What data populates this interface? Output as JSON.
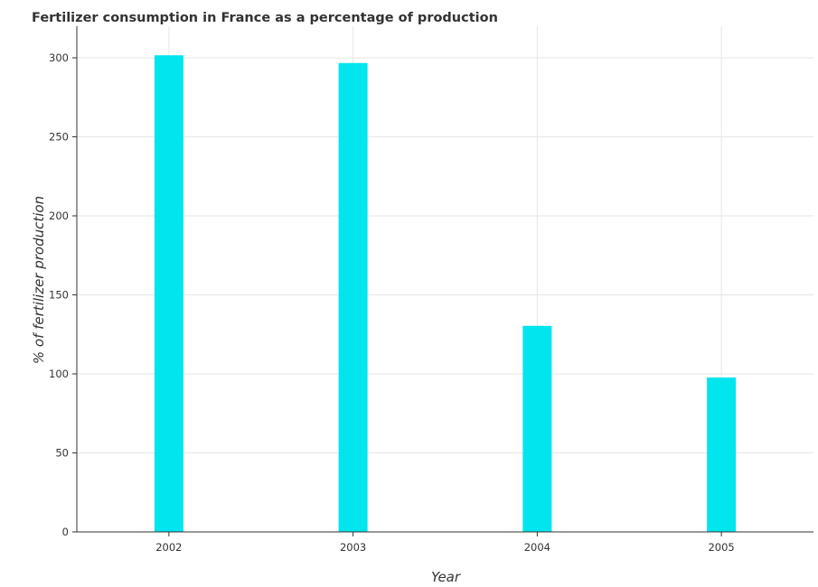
{
  "chart_data": {
    "type": "bar",
    "title": "Fertilizer consumption in France as a percentage of production",
    "xlabel": "Year",
    "ylabel": "% of fertilizer production",
    "categories": [
      "2002",
      "2003",
      "2004",
      "2005"
    ],
    "values": [
      301.6,
      296.7,
      130.4,
      97.7
    ],
    "y_ticks": [
      "0",
      "50",
      "100",
      "150",
      "200",
      "250",
      "300"
    ],
    "ylim": [
      0,
      320
    ],
    "grid": true,
    "bar_color": "#00e5ee"
  }
}
